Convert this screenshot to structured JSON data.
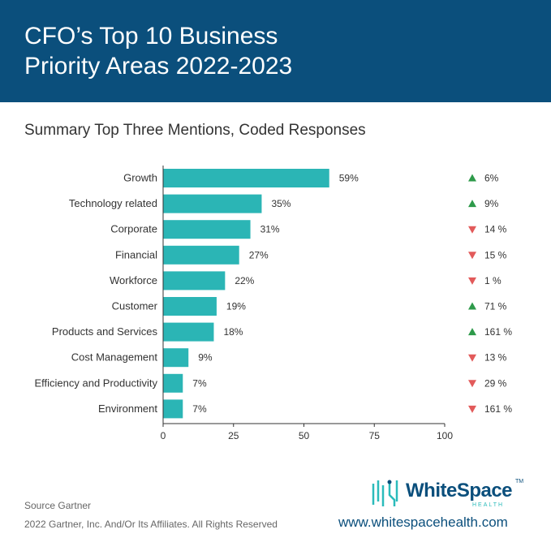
{
  "header": {
    "title": "CFO’s Top 10 Business\nPriority Areas 2022-2023",
    "subtitle": "Summary Top Three Mentions, Coded Responses"
  },
  "colors": {
    "header_bg": "#0b4f7c",
    "bar": "#2bb5b5",
    "up": "#2e9a4a",
    "down": "#e25a5a",
    "text": "#333333"
  },
  "chart_data": {
    "type": "bar",
    "orientation": "horizontal",
    "title": "CFO’s Top 10 Business Priority Areas 2022-2023",
    "subtitle": "Summary Top Three Mentions, Coded Responses",
    "categories": [
      "Growth",
      "Technology related",
      "Corporate",
      "Financial",
      "Workforce",
      "Customer",
      "Products and Services",
      "Cost Management",
      "Efficiency and Productivity",
      "Environment"
    ],
    "values": [
      59,
      35,
      31,
      27,
      22,
      19,
      18,
      9,
      7,
      7
    ],
    "value_labels": [
      "59%",
      "35%",
      "31%",
      "27%",
      "22%",
      "19%",
      "18%",
      "9%",
      "7%",
      "7%"
    ],
    "changes": [
      {
        "direction": "up",
        "label": "6%"
      },
      {
        "direction": "up",
        "label": "9%"
      },
      {
        "direction": "down",
        "label": "14 %"
      },
      {
        "direction": "down",
        "label": "15 %"
      },
      {
        "direction": "down",
        "label": "1 %"
      },
      {
        "direction": "up",
        "label": "71 %"
      },
      {
        "direction": "up",
        "label": "161 %"
      },
      {
        "direction": "down",
        "label": "13 %"
      },
      {
        "direction": "down",
        "label": "29 %"
      },
      {
        "direction": "down",
        "label": "161 %"
      }
    ],
    "xlim": [
      0,
      100
    ],
    "xticks": [
      0,
      25,
      50,
      75,
      100
    ],
    "grid": false
  },
  "footer": {
    "source": "Source Gartner",
    "rights": "2022 Gartner, Inc. And/Or Its Affiliates. All Rights Reserved",
    "logo_text": "WhiteSpace",
    "logo_tm": "TM",
    "logo_sub": "HEALTH",
    "website": "www.whitespacehealth.com"
  }
}
